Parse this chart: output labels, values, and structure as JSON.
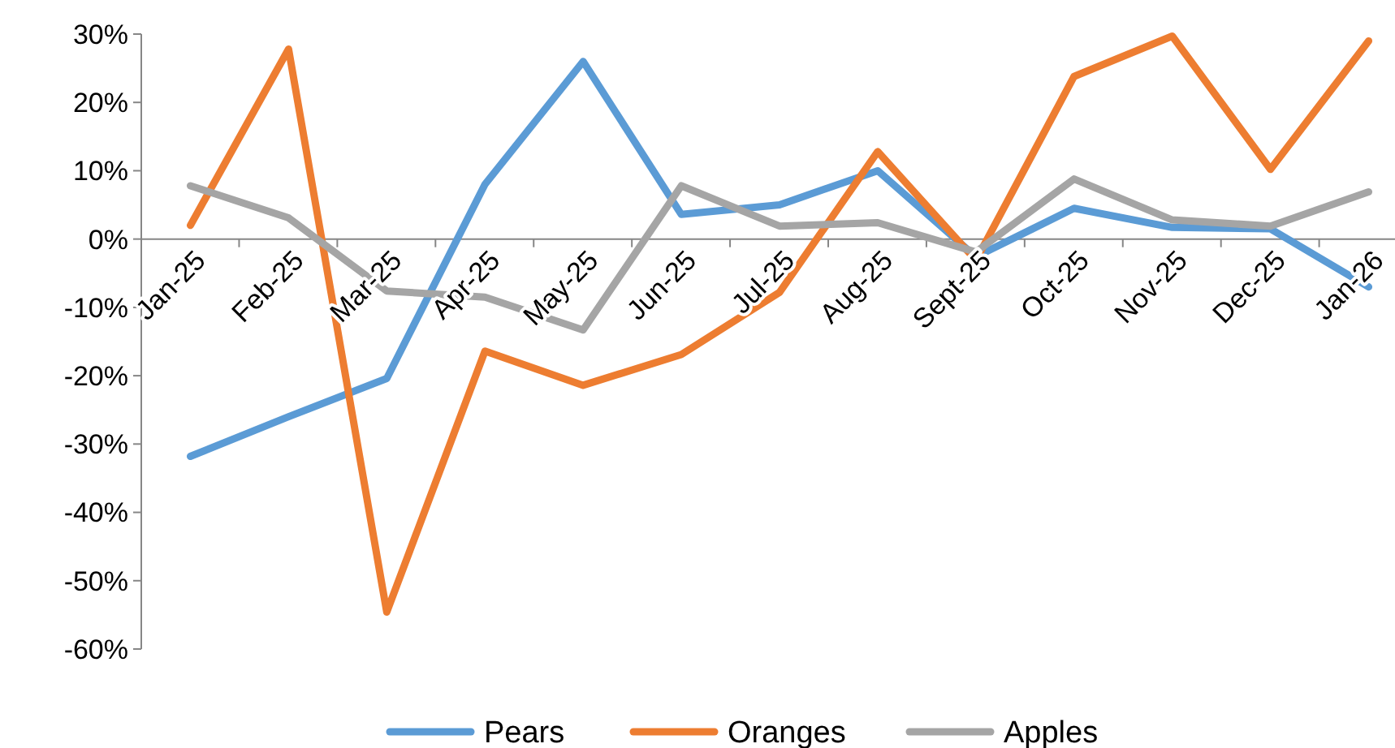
{
  "chart_data": {
    "type": "line",
    "categories": [
      "Jan-25",
      "Feb-25",
      "Mar-25",
      "Apr-25",
      "May-25",
      "Jun-25",
      "Jul-25",
      "Aug-25",
      "Sept-25",
      "Oct-25",
      "Nov-25",
      "Dec-25",
      "Jan-26"
    ],
    "series": [
      {
        "name": "Pears",
        "color": "#5b9bd5",
        "values": [
          -31.8,
          -26,
          -20.4,
          8,
          26,
          3.6,
          5,
          10,
          -2.6,
          4.5,
          1.7,
          1.5,
          -7
        ]
      },
      {
        "name": "Oranges",
        "color": "#ed7d31",
        "values": [
          2,
          27.8,
          -54.6,
          -16.4,
          -21.4,
          -16.9,
          -7.8,
          12.8,
          -3.1,
          23.8,
          29.7,
          10.2,
          29
        ]
      },
      {
        "name": "Apples",
        "color": "#a5a5a5",
        "values": [
          7.8,
          3.1,
          -7.6,
          -8.5,
          -13.3,
          7.8,
          1.9,
          2.4,
          -1.9,
          8.8,
          2.8,
          1.9,
          6.9
        ]
      }
    ],
    "ylim": [
      -60,
      30
    ],
    "yticks": [
      {
        "value": -60,
        "label": "-60%"
      },
      {
        "value": -50,
        "label": "-50%"
      },
      {
        "value": -40,
        "label": "-40%"
      },
      {
        "value": -30,
        "label": "-30%"
      },
      {
        "value": -20,
        "label": "-20%"
      },
      {
        "value": -10,
        "label": "-10%"
      },
      {
        "value": 0,
        "label": "0%"
      },
      {
        "value": 10,
        "label": "10%"
      },
      {
        "value": 20,
        "label": "20%"
      },
      {
        "value": 30,
        "label": "30%"
      }
    ],
    "grid": false,
    "legend": "bottom",
    "marker": "none",
    "line_style": "solid"
  }
}
